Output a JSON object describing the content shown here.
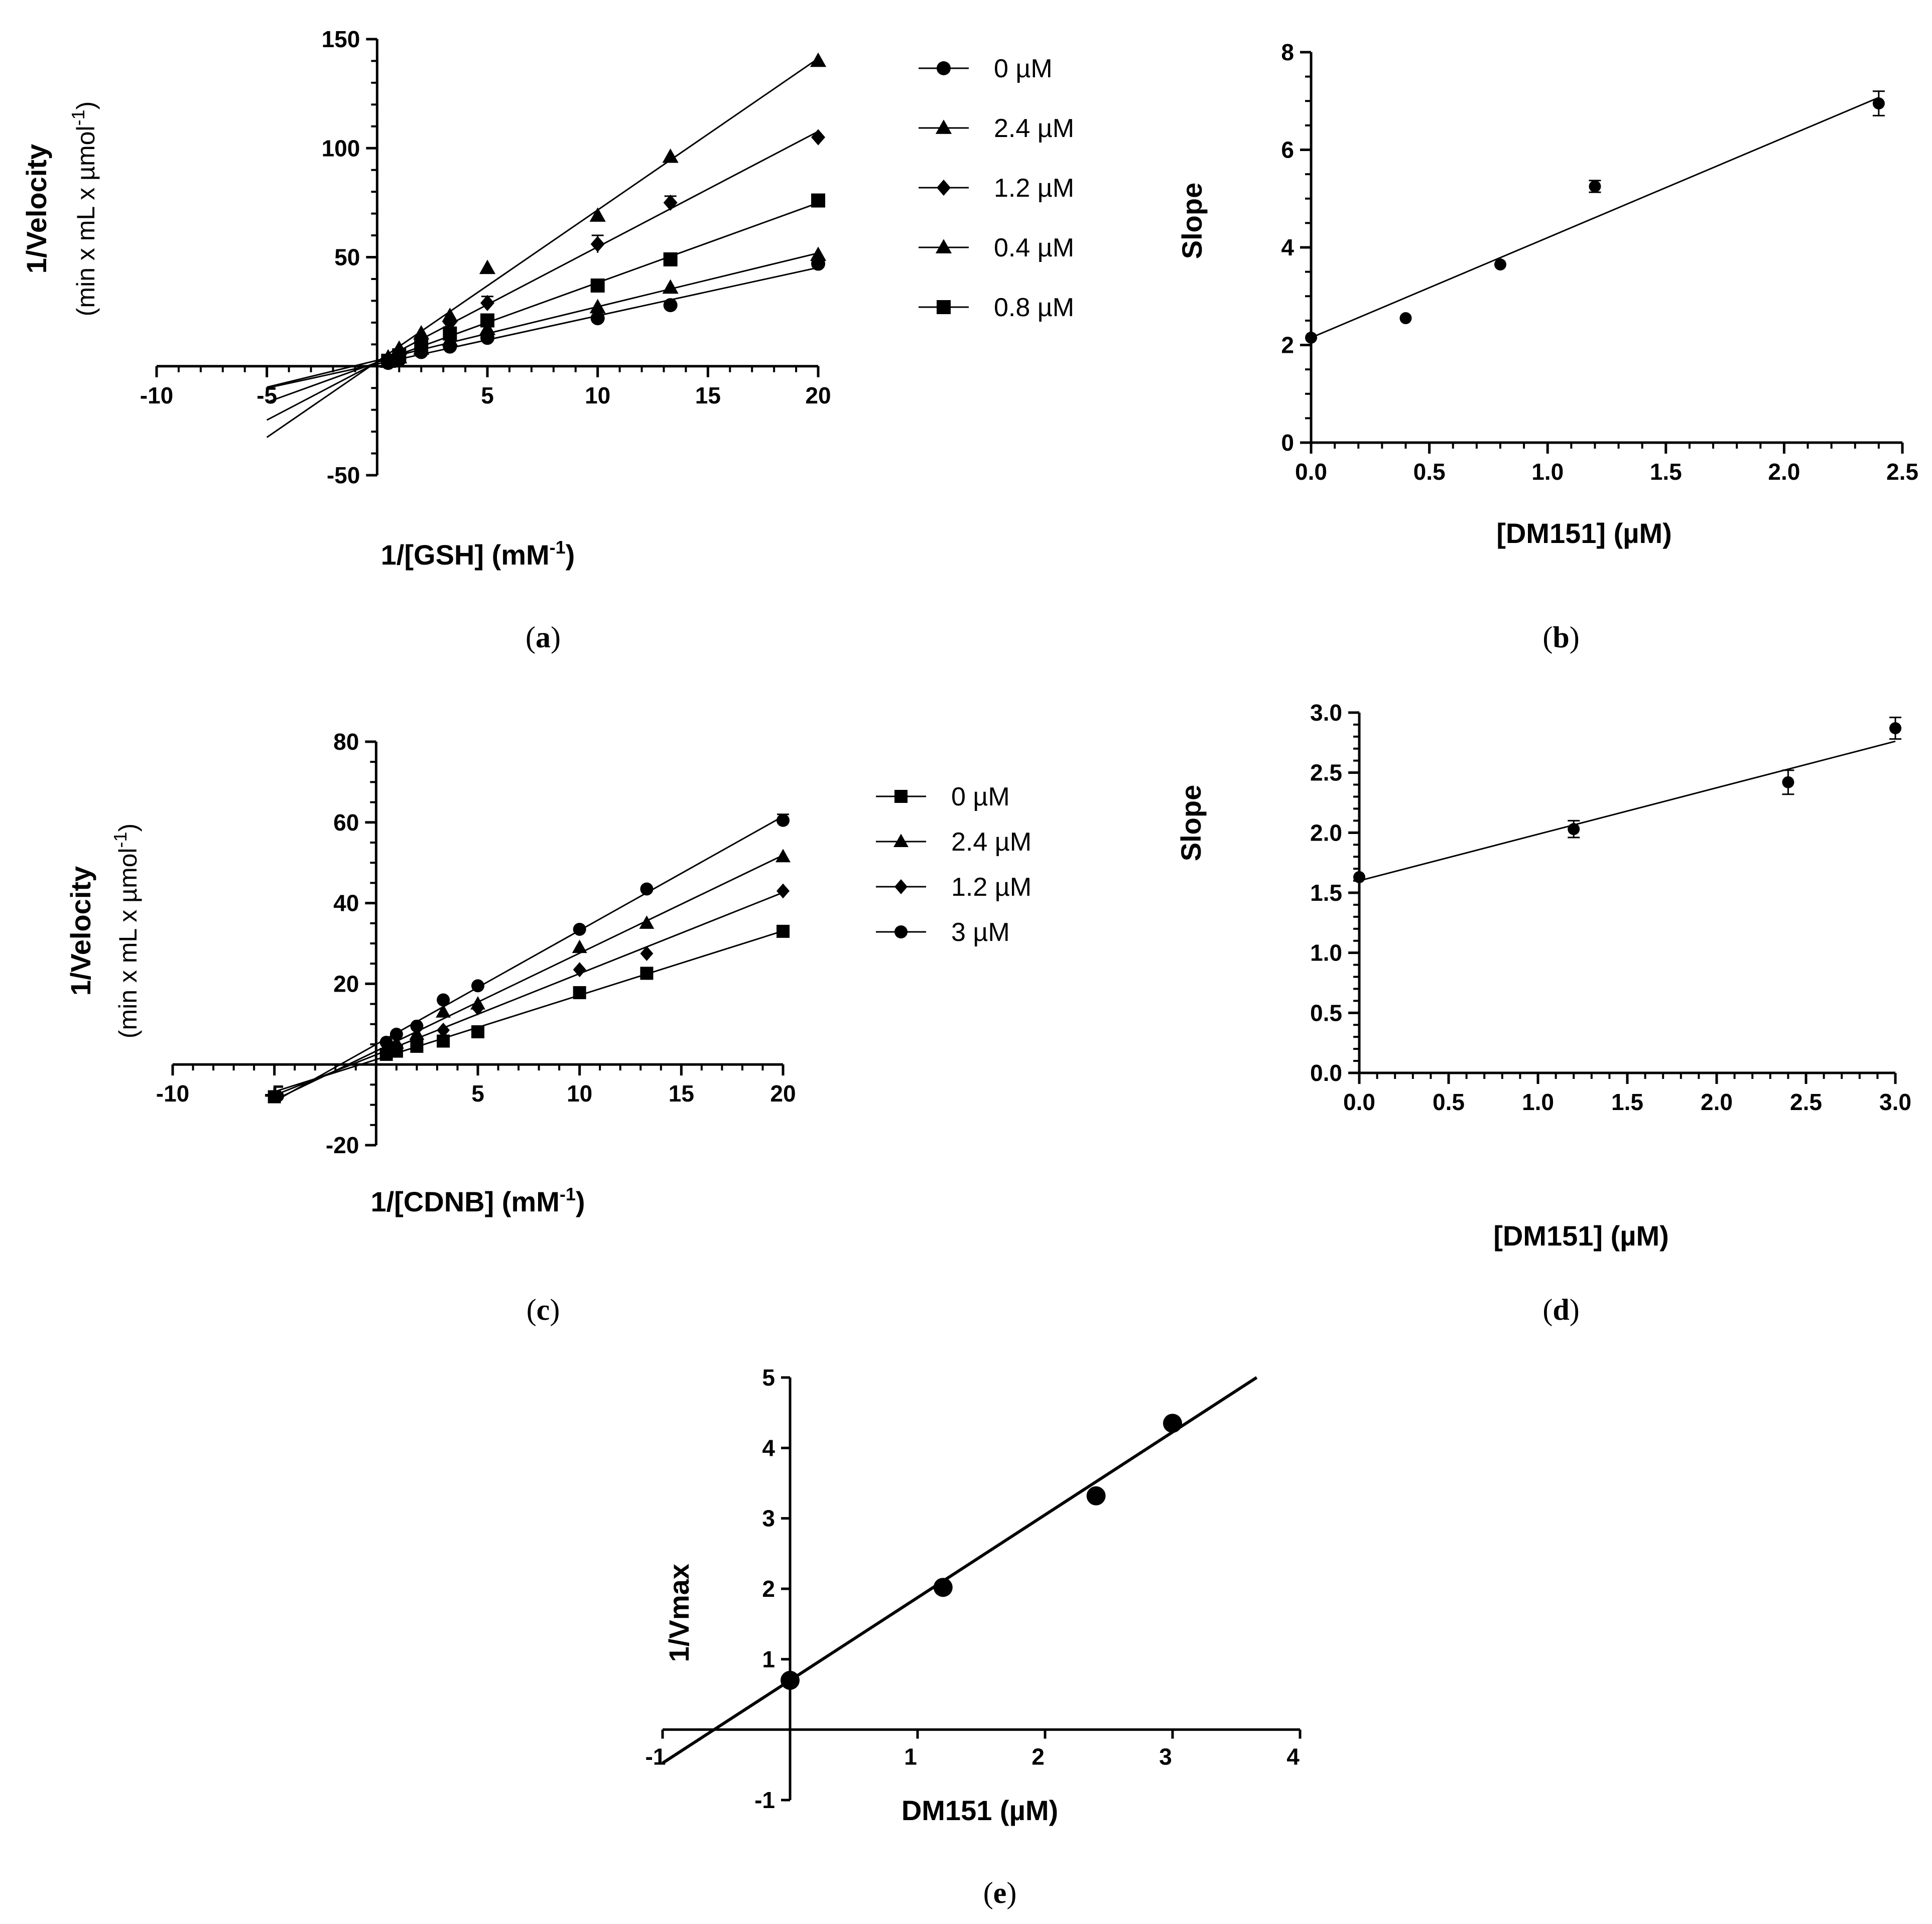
{
  "chart_data": [
    {
      "id": "a",
      "type": "line",
      "caption": "(a)",
      "caption_letter": "a",
      "ylabel": "1/Velocity",
      "ylabel_units": "(min x mL x µmol",
      "ylabel_units_sup": "-1",
      "ylabel_units_end": ")",
      "xlabel": "1/[GSH] (mM",
      "xlabel_sup": "-1",
      "xlabel_end": ")",
      "xlim": [
        -10,
        20
      ],
      "ylim": [
        -50,
        150
      ],
      "xticks": [
        "-10",
        "-5",
        "5",
        "10",
        "15",
        "20"
      ],
      "xtick_values": [
        -10,
        -5,
        5,
        10,
        15,
        20
      ],
      "yticks": [
        "-50",
        "50",
        "100",
        "150"
      ],
      "ytick_values": [
        -50,
        50,
        100,
        150
      ],
      "x": [
        0.5,
        1,
        2,
        3.3,
        5,
        10,
        13.3,
        20
      ],
      "series": [
        {
          "name": "0 µM",
          "marker": "circle",
          "values": [
            1.5,
            3,
            6.5,
            9,
            13,
            22,
            28,
            47
          ]
        },
        {
          "name": "2.4 µM",
          "marker": "triangle",
          "values": [
            4,
            8,
            15,
            23,
            45,
            69,
            96,
            140
          ]
        },
        {
          "name": "1.2 µM",
          "marker": "diamond",
          "values": [
            3,
            6,
            12,
            20,
            29,
            56,
            75,
            105
          ]
        },
        {
          "name": "0.4 µM",
          "marker": "triangle",
          "values": [
            2,
            4,
            8,
            12,
            17,
            27,
            36,
            51
          ]
        },
        {
          "name": "0.8 µM",
          "marker": "square",
          "values": [
            2.5,
            5,
            10,
            15,
            21,
            37,
            49,
            76
          ]
        }
      ],
      "error_bars": [
        {
          "series": 2,
          "x": 5,
          "error": 3
        },
        {
          "series": 2,
          "x": 10,
          "error": 4
        },
        {
          "series": 2,
          "x": 13.3,
          "error": 3
        }
      ],
      "fit_x_range": [
        -5,
        20
      ],
      "legend": "right"
    },
    {
      "id": "b",
      "type": "scatter",
      "caption": "(b)",
      "caption_letter": "b",
      "ylabel": "Slope",
      "xlabel": "[DM151] (µM)",
      "xlim": [
        0,
        2.5
      ],
      "ylim": [
        0,
        8
      ],
      "xticks": [
        "0.0",
        "0.5",
        "1.0",
        "1.5",
        "2.0",
        "2.5"
      ],
      "xtick_values": [
        0,
        0.5,
        1.0,
        1.5,
        2.0,
        2.5
      ],
      "yticks": [
        "0",
        "2",
        "4",
        "6",
        "8"
      ],
      "ytick_values": [
        0,
        2,
        4,
        6,
        8
      ],
      "x": [
        0,
        0.4,
        0.8,
        1.2,
        2.4
      ],
      "values": [
        2.15,
        2.55,
        3.65,
        5.25,
        6.95
      ],
      "errors": [
        0,
        0,
        0,
        0.12,
        0.25
      ],
      "fit": {
        "intercept": 2.15,
        "slope": 2.05,
        "x_range": [
          0,
          2.4
        ]
      }
    },
    {
      "id": "c",
      "type": "line",
      "caption": "(c)",
      "caption_letter": "c",
      "ylabel": "1/Velocity",
      "ylabel_units": "(min x mL x µmol",
      "ylabel_units_sup": "-1",
      "ylabel_units_end": ")",
      "xlabel": "1/[CDNB] (mM",
      "xlabel_sup": "-1",
      "xlabel_end": ")",
      "xlim": [
        -10,
        20
      ],
      "ylim": [
        -20,
        80
      ],
      "xticks": [
        "-10",
        "-5",
        "5",
        "10",
        "15",
        "20"
      ],
      "xtick_values": [
        -10,
        -5,
        5,
        10,
        15,
        20
      ],
      "yticks": [
        "-20",
        "20",
        "40",
        "60",
        "80"
      ],
      "ytick_values": [
        -20,
        20,
        40,
        60,
        80
      ],
      "x": [
        0.5,
        1,
        2,
        3.3,
        5,
        10,
        13.3,
        20
      ],
      "series": [
        {
          "name": "0 µM",
          "marker": "square",
          "values": [
            2.5,
            3.3,
            4.5,
            5.8,
            8.1,
            17.8,
            22.6,
            33
          ]
        },
        {
          "name": "2.4 µM",
          "marker": "triangle",
          "values": [
            4,
            5.3,
            7.5,
            13,
            15,
            29,
            35,
            51.5
          ]
        },
        {
          "name": "1.2 µM",
          "marker": "diamond",
          "values": [
            3.3,
            4.3,
            6,
            8.5,
            14,
            23.5,
            27.5,
            43
          ]
        },
        {
          "name": "3 µM",
          "marker": "circle",
          "values": [
            5.5,
            7.5,
            9.5,
            16,
            19.5,
            33.5,
            43.5,
            60.5
          ]
        }
      ],
      "extra_point": {
        "x": -5,
        "value": -8,
        "marker": "square"
      },
      "error_bars": [
        {
          "series": 3,
          "x": 20,
          "error": 1.5
        }
      ],
      "fit_x_range": [
        -5,
        20
      ],
      "legend": "right"
    },
    {
      "id": "d",
      "type": "scatter",
      "caption": "(d)",
      "caption_letter": "d",
      "ylabel": "Slope",
      "xlabel": "[DM151] (µM)",
      "xlim": [
        0,
        3.0
      ],
      "ylim": [
        0,
        3.0
      ],
      "xticks": [
        "0.0",
        "0.5",
        "1.0",
        "1.5",
        "2.0",
        "2.5",
        "3.0"
      ],
      "xtick_values": [
        0,
        0.5,
        1.0,
        1.5,
        2.0,
        2.5,
        3.0
      ],
      "yticks": [
        "0.0",
        "0.5",
        "1.0",
        "1.5",
        "2.0",
        "2.5",
        "3.0"
      ],
      "ytick_values": [
        0,
        0.5,
        1.0,
        1.5,
        2.0,
        2.5,
        3.0
      ],
      "x": [
        0,
        1.2,
        2.4,
        3.0
      ],
      "values": [
        1.63,
        2.03,
        2.42,
        2.87
      ],
      "errors": [
        0,
        0.07,
        0.1,
        0.09
      ],
      "fit": {
        "intercept": 1.6,
        "slope": 0.387,
        "x_range": [
          0,
          3.0
        ]
      }
    },
    {
      "id": "e",
      "type": "scatter",
      "caption": "(e)",
      "caption_letter": "e",
      "ylabel": "1/Vmax",
      "xlabel": "DM151 (µM)",
      "xlim": [
        -1,
        4
      ],
      "ylim": [
        -1,
        5
      ],
      "xticks": [
        "-1",
        "1",
        "2",
        "3",
        "4"
      ],
      "xtick_values": [
        -1,
        1,
        2,
        3,
        4
      ],
      "yticks": [
        "-1",
        "1",
        "2",
        "3",
        "4",
        "5"
      ],
      "ytick_values": [
        -1,
        1,
        2,
        3,
        4,
        5
      ],
      "x": [
        0,
        1.2,
        2.4,
        3.0
      ],
      "values": [
        0.7,
        2.02,
        3.32,
        4.35
      ],
      "fit": {
        "intercept": 0.7,
        "slope": 1.175,
        "x_range": [
          -1,
          3.66
        ]
      }
    }
  ]
}
